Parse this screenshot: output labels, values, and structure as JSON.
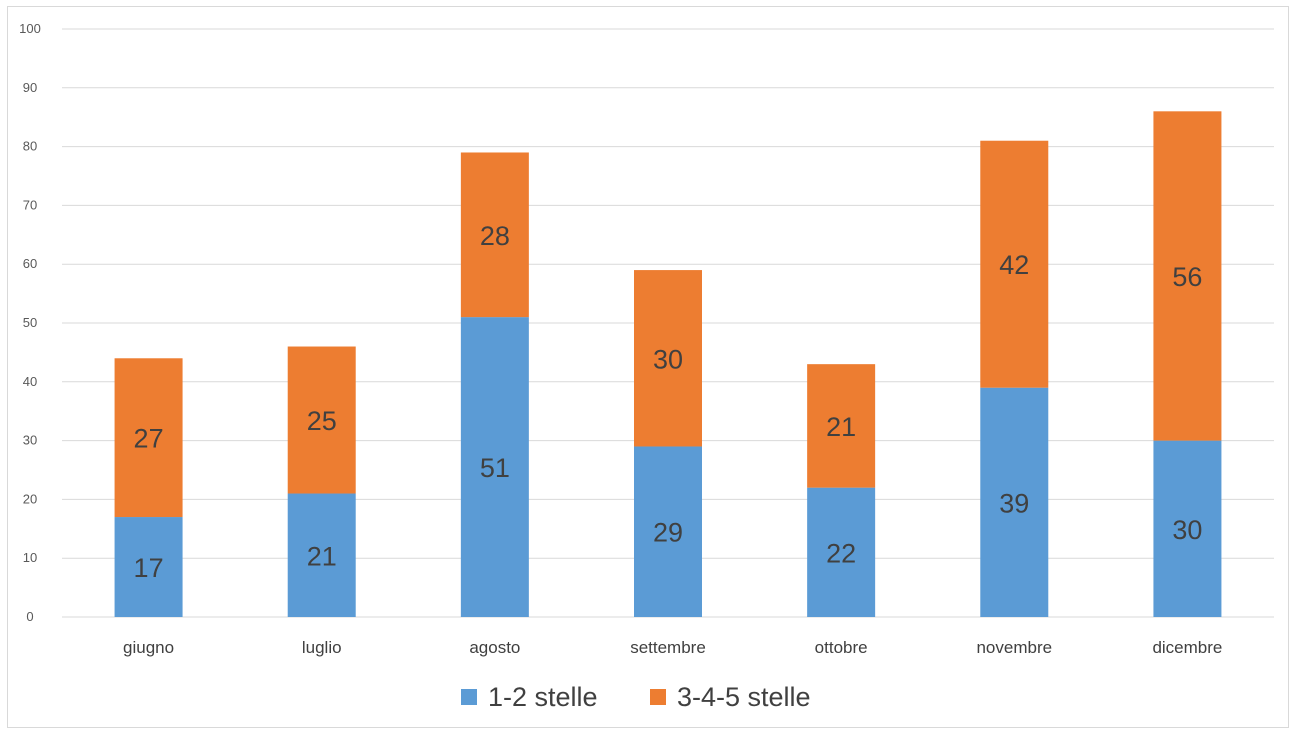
{
  "chart_data": {
    "type": "bar",
    "stacked": true,
    "categories": [
      "giugno",
      "luglio",
      "agosto",
      "settembre",
      "ottobre",
      "novembre",
      "dicembre"
    ],
    "series": [
      {
        "name": "1-2 stelle",
        "color": "#5b9bd5",
        "values": [
          17,
          21,
          51,
          29,
          22,
          39,
          30
        ]
      },
      {
        "name": "3-4-5 stelle",
        "color": "#ed7d31",
        "values": [
          27,
          25,
          28,
          30,
          21,
          42,
          56
        ]
      }
    ],
    "ylim": [
      0,
      100
    ],
    "yticks": [
      0,
      10,
      20,
      30,
      40,
      50,
      60,
      70,
      80,
      90,
      100
    ],
    "grid": true,
    "legend_position": "bottom",
    "data_labels": true,
    "title": "",
    "xlabel": "",
    "ylabel": ""
  }
}
